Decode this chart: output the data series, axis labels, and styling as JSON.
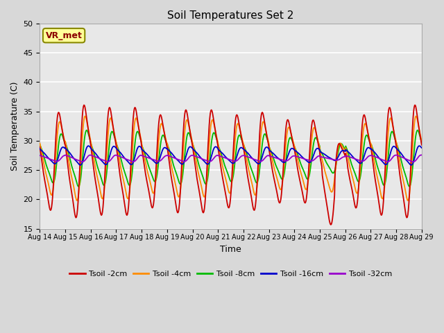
{
  "title": "Soil Temperatures Set 2",
  "xlabel": "Time",
  "ylabel": "Soil Temperature (C)",
  "ylim": [
    15,
    50
  ],
  "yticks": [
    15,
    20,
    25,
    30,
    35,
    40,
    45,
    50
  ],
  "x_labels": [
    "Aug 14",
    "Aug 15",
    "Aug 16",
    "Aug 17",
    "Aug 18",
    "Aug 19",
    "Aug 20",
    "Aug 21",
    "Aug 22",
    "Aug 23",
    "Aug 24",
    "Aug 25",
    "Aug 26",
    "Aug 27",
    "Aug 28",
    "Aug 29"
  ],
  "series_colors": [
    "#cc0000",
    "#ff8c00",
    "#00bb00",
    "#0000cc",
    "#9900cc"
  ],
  "series_names": [
    "Tsoil -2cm",
    "Tsoil -4cm",
    "Tsoil -8cm",
    "Tsoil -16cm",
    "Tsoil -32cm"
  ],
  "annotation_text": "VR_met",
  "annotation_bg": "#ffff99",
  "annotation_border": "#888800",
  "fig_bg": "#d8d8d8",
  "plot_bg": "#e8e8e8",
  "grid_color": "#ffffff",
  "n_days": 15,
  "base_temp": 26.5,
  "amp_2cm": 10.0,
  "amp_4cm": 7.5,
  "amp_8cm": 5.0,
  "amp_16cm": 1.7,
  "amp_32cm": 0.6,
  "lag_2cm": 0.58,
  "lag_4cm": 0.62,
  "lag_8cm": 0.68,
  "lag_16cm": 0.75,
  "lag_32cm": 0.83
}
